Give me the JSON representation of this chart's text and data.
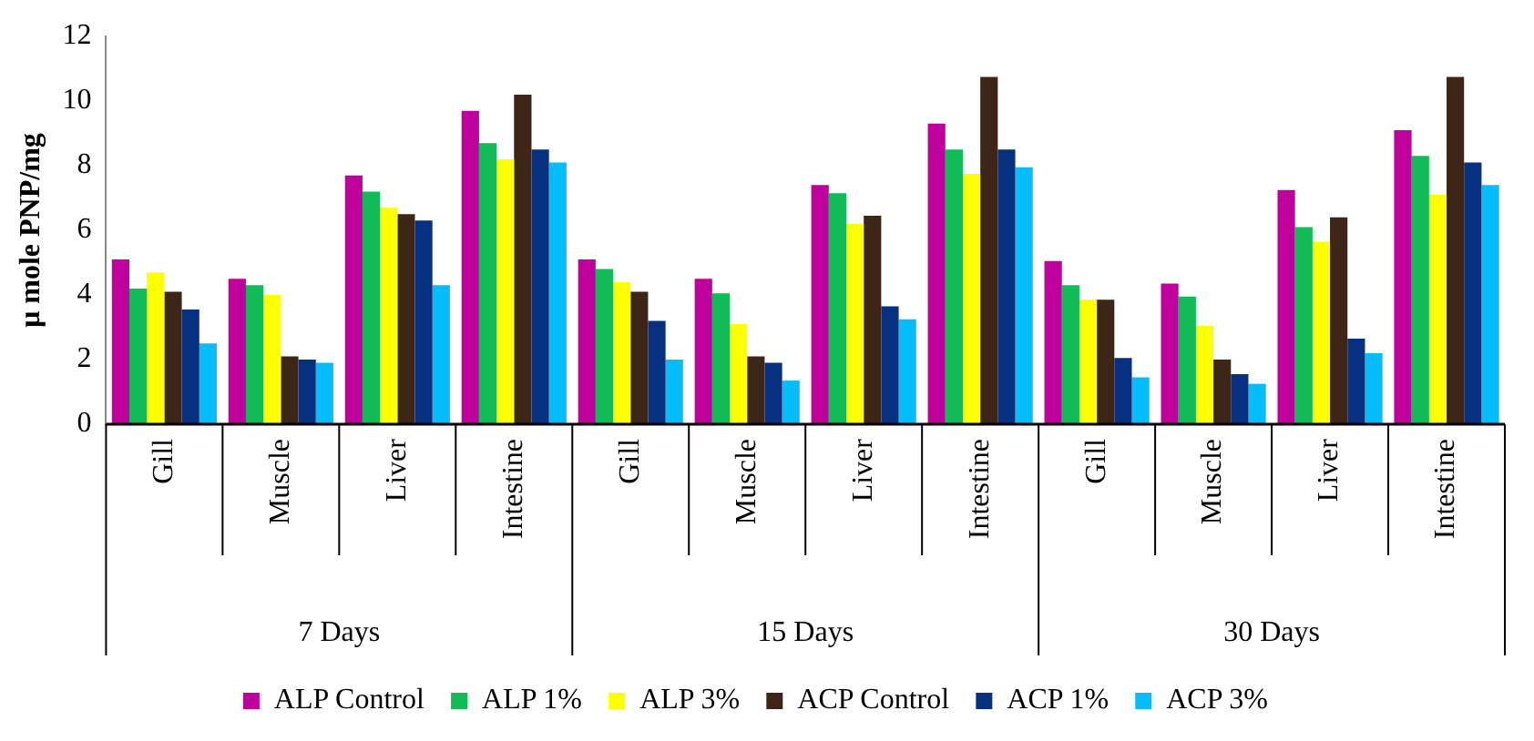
{
  "chart_data": {
    "type": "bar",
    "ylabel": "μ mole PNP/mg",
    "categories": [
      "Gill",
      "Muscle",
      "Liver",
      "Intestine",
      "Gill",
      "Muscle",
      "Liver",
      "Intestine",
      "Gill",
      "Muscle",
      "Liver",
      "Intestine"
    ],
    "annotations": [
      "7 Days",
      "15 Days",
      "30 Days"
    ],
    "series": [
      {
        "name": "ALP Control",
        "color": "#c0009c",
        "values": [
          5.1,
          4.5,
          7.7,
          9.7,
          5.1,
          4.5,
          7.4,
          9.3,
          5.05,
          4.35,
          7.25,
          9.1
        ]
      },
      {
        "name": "ALP 1%",
        "color": "#10bb58",
        "values": [
          4.2,
          4.3,
          7.2,
          8.7,
          4.8,
          4.05,
          7.15,
          8.5,
          4.3,
          3.95,
          6.1,
          8.3
        ]
      },
      {
        "name": "ALP 3%",
        "color": "#ffff00",
        "values": [
          4.7,
          4.0,
          6.7,
          8.2,
          4.4,
          3.1,
          6.2,
          7.75,
          3.85,
          3.05,
          5.65,
          7.1
        ]
      },
      {
        "name": "ACP Control",
        "color": "#3d2518",
        "values": [
          4.1,
          2.1,
          6.5,
          10.2,
          4.1,
          2.1,
          6.45,
          10.75,
          3.85,
          2.0,
          6.4,
          10.75
        ]
      },
      {
        "name": "ACP 1%",
        "color": "#073080",
        "values": [
          3.55,
          2.0,
          6.3,
          8.5,
          3.2,
          1.9,
          3.65,
          8.5,
          2.05,
          1.55,
          2.65,
          8.1
        ]
      },
      {
        "name": "ACP 3%",
        "color": "#06bdfb",
        "values": [
          2.5,
          1.9,
          4.3,
          8.1,
          2.0,
          1.35,
          3.25,
          7.95,
          1.45,
          1.25,
          2.2,
          7.4
        ]
      }
    ],
    "ylim": [
      0,
      12
    ],
    "yticks": [
      0,
      2,
      4,
      6,
      8,
      10,
      12
    ],
    "grid": false,
    "legend": "bottom"
  }
}
